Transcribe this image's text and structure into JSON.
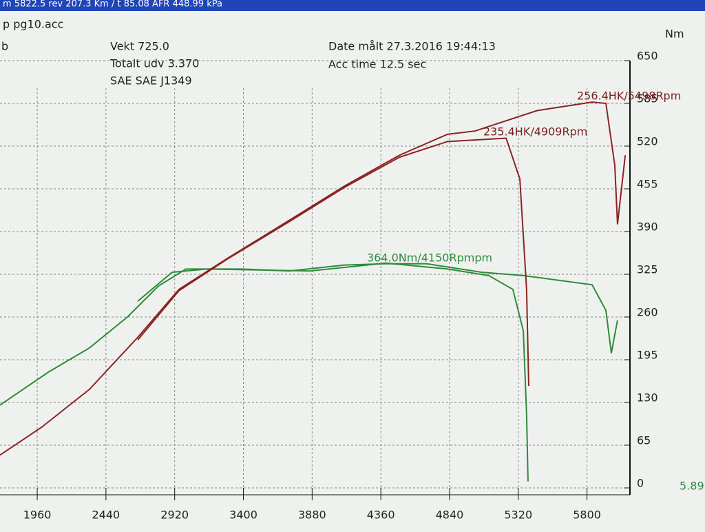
{
  "header": {
    "status": "m 5822.5 rev 207.3 Km / t   85.08 AFR   448.99 kPa",
    "file": "p pg10.acc",
    "left": "b",
    "weight": "Vekt    725.0",
    "ratio": "Totalt udv 3.370",
    "standard": "SAE SAE J1349",
    "date": "Date målt 27.3.2016 19:44:13",
    "acc": "Acc time   12.5 sec",
    "second_axis": "5.89"
  },
  "chart_data": {
    "type": "line",
    "y_label": "Nm",
    "annotations": [
      "256.4HK/5498Rpm",
      "235.4HK/4909Rpm",
      "364.0Nm/4150Rpmpm"
    ],
    "xlim": [
      1700,
      6100
    ],
    "ylim": [
      0,
      650
    ],
    "xticks": [
      1960,
      2440,
      2920,
      3400,
      3880,
      4360,
      4840,
      5320,
      5800
    ],
    "yticks": [
      0,
      65,
      130,
      195,
      260,
      325,
      390,
      455,
      520,
      585,
      650
    ],
    "grid": true,
    "series": [
      {
        "color": "#2e8b3a",
        "x": [
          1700,
          2037,
          2325,
          2590,
          2806,
          2998,
          3383,
          3720,
          4104,
          4393,
          4681,
          5066,
          5355,
          5836,
          5932,
          5970,
          6013
        ],
        "values": [
          126,
          176,
          213,
          260,
          307,
          333,
          333,
          330,
          339,
          341,
          341,
          328,
          323,
          309,
          270,
          205,
          255
        ]
      },
      {
        "color": "#2e8b3a",
        "x": [
          2662,
          2902,
          3143,
          3864,
          4393,
          4826,
          5114,
          5282,
          5355,
          5378,
          5388
        ],
        "values": [
          284,
          328,
          333,
          330,
          342,
          333,
          323,
          302,
          239,
          113,
          10
        ]
      },
      {
        "color": "#8b2323",
        "x": [
          1700,
          1989,
          2325,
          2662,
          2950,
          3287,
          3720,
          4104,
          4489,
          4826,
          5018,
          5451,
          5836,
          5932,
          5994,
          6013,
          6067
        ],
        "values": [
          50,
          92,
          150,
          229,
          302,
          349,
          407,
          459,
          506,
          538,
          543,
          574,
          587,
          585,
          491,
          401,
          506
        ]
      },
      {
        "color": "#8b2323",
        "x": [
          2662,
          2950,
          3287,
          3720,
          4104,
          4489,
          4826,
          5235,
          5331,
          5378,
          5393
        ],
        "values": [
          225,
          300,
          348,
          405,
          457,
          503,
          527,
          532,
          470,
          302,
          155
        ]
      }
    ]
  }
}
